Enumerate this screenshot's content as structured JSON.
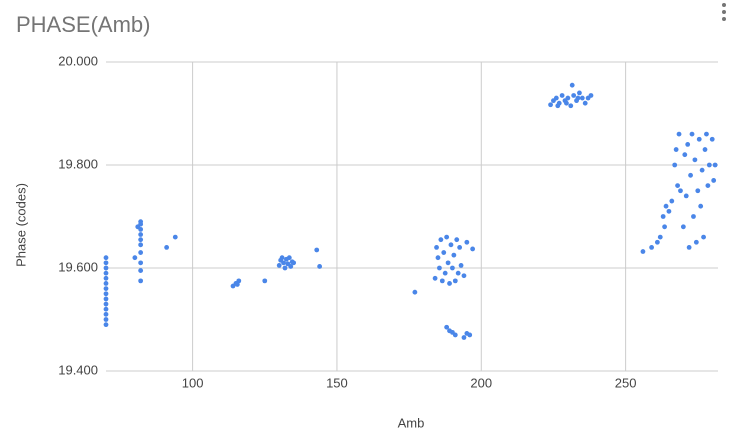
{
  "chart_data": {
    "type": "scatter",
    "title": "PHASE(Amb)",
    "x_label": "Amb",
    "y_label": "Phase (codes)",
    "color": "#4a86e8",
    "grid": true,
    "xlim": [
      70,
      282
    ],
    "xticks": [
      100,
      150,
      200,
      250
    ],
    "ylim": [
      19.4,
      20.0
    ],
    "yticks": [
      {
        "value": 19.4,
        "label": "19.400"
      },
      {
        "value": 19.6,
        "label": "19.600"
      },
      {
        "value": 19.8,
        "label": "19.800"
      },
      {
        "value": 20.0,
        "label": "20.000"
      }
    ],
    "x": [
      70,
      70,
      70,
      70,
      70,
      70,
      70,
      70,
      70,
      70,
      70,
      70,
      70,
      70,
      82,
      82,
      82,
      82,
      82,
      82,
      82,
      82,
      82,
      82,
      80,
      81,
      91,
      94,
      114,
      115,
      116,
      115.5,
      125,
      130,
      130.5,
      131,
      131.5,
      132,
      132.5,
      133,
      133.5,
      134,
      134.5,
      135,
      143,
      144,
      177,
      184,
      184.5,
      185,
      185.5,
      186,
      186.5,
      187,
      187.5,
      188,
      188.5,
      189,
      189.5,
      190,
      190.5,
      191,
      191.5,
      192,
      192.5,
      193,
      194,
      195,
      197,
      188,
      189,
      190,
      191,
      194,
      195,
      196,
      224,
      225,
      226,
      227,
      228,
      229,
      230,
      231,
      231.5,
      232,
      233,
      234,
      235,
      236,
      237,
      238,
      226.5,
      229.5,
      233.5,
      256,
      259,
      261,
      262,
      263,
      263.5,
      264,
      265,
      266,
      267,
      267.5,
      268,
      268.5,
      269,
      270,
      270.5,
      271,
      271.5,
      272,
      272.5,
      273,
      273.5,
      274,
      274.5,
      275,
      275.5,
      276,
      276.5,
      277,
      277.5,
      278,
      278.5,
      279,
      280,
      280.5,
      281
    ],
    "values": [
      19.49,
      19.5,
      19.51,
      19.52,
      19.53,
      19.54,
      19.55,
      19.56,
      19.57,
      19.58,
      19.59,
      19.6,
      19.61,
      19.62,
      19.575,
      19.595,
      19.61,
      19.63,
      19.645,
      19.655,
      19.665,
      19.675,
      19.685,
      19.69,
      19.62,
      19.68,
      19.64,
      19.66,
      19.565,
      19.57,
      19.575,
      19.568,
      19.575,
      19.605,
      19.615,
      19.62,
      19.61,
      19.6,
      19.617,
      19.608,
      19.62,
      19.603,
      19.612,
      19.61,
      19.635,
      19.603,
      19.553,
      19.58,
      19.64,
      19.62,
      19.6,
      19.655,
      19.575,
      19.63,
      19.59,
      19.66,
      19.61,
      19.57,
      19.645,
      19.6,
      19.625,
      19.575,
      19.655,
      19.59,
      19.64,
      19.605,
      19.585,
      19.65,
      19.637,
      19.485,
      19.478,
      19.475,
      19.47,
      19.465,
      19.473,
      19.47,
      19.917,
      19.925,
      19.93,
      19.92,
      19.935,
      19.925,
      19.93,
      19.915,
      19.955,
      19.935,
      19.925,
      19.94,
      19.93,
      19.92,
      19.93,
      19.935,
      19.915,
      19.92,
      19.93,
      19.632,
      19.64,
      19.65,
      19.66,
      19.7,
      19.68,
      19.72,
      19.71,
      19.73,
      19.8,
      19.83,
      19.76,
      19.86,
      19.75,
      19.68,
      19.82,
      19.74,
      19.84,
      19.64,
      19.78,
      19.86,
      19.7,
      19.81,
      19.65,
      19.75,
      19.85,
      19.72,
      19.79,
      19.66,
      19.83,
      19.86,
      19.76,
      19.8,
      19.85,
      19.77,
      19.8
    ]
  }
}
